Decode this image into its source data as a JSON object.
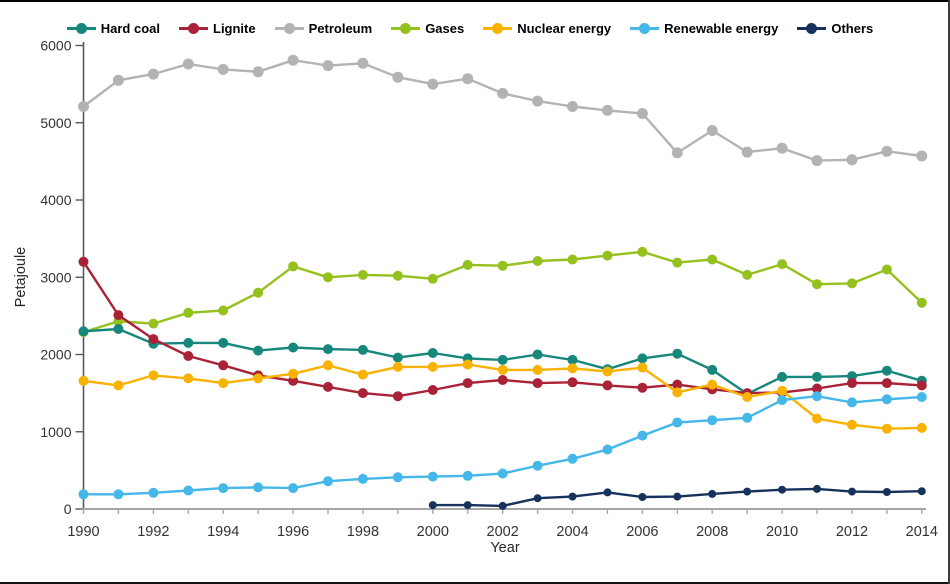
{
  "chart_data": {
    "type": "line",
    "title": "",
    "xlabel": "Year",
    "ylabel": "Petajoule",
    "x": [
      1990,
      1991,
      1992,
      1993,
      1994,
      1995,
      1996,
      1997,
      1998,
      1999,
      2000,
      2001,
      2002,
      2003,
      2004,
      2005,
      2006,
      2007,
      2008,
      2009,
      2010,
      2011,
      2012,
      2013,
      2014
    ],
    "x_tick_labels": [
      "1990",
      "1992",
      "1994",
      "1996",
      "1998",
      "2000",
      "2002",
      "2004",
      "2006",
      "2008",
      "2010",
      "2012",
      "2014"
    ],
    "y_ticks": [
      0,
      1000,
      2000,
      3000,
      4000,
      5000,
      6000
    ],
    "y_tick_labels": [
      "0",
      "1000",
      "2000",
      "3000",
      "4000",
      "5000",
      "6000"
    ],
    "ylim": [
      0,
      6000
    ],
    "grid": false,
    "legend_position": "top",
    "axis_color_y": "#595959",
    "axis_color_x": "#a6a6a6",
    "tick_label_color": "#333333",
    "axis_title_color": "#262626",
    "series": [
      {
        "name": "Hard coal",
        "color": "#17877B",
        "marker_r": 5,
        "values": [
          2300,
          2330,
          2140,
          2150,
          2150,
          2050,
          2090,
          2070,
          2060,
          1960,
          2020,
          1950,
          1930,
          2000,
          1930,
          1810,
          1950,
          2010,
          1800,
          1490,
          1710,
          1710,
          1720,
          1790,
          1660
        ]
      },
      {
        "name": "Lignite",
        "color": "#A92237",
        "marker_r": 5,
        "values": [
          3200,
          2510,
          2200,
          1980,
          1860,
          1730,
          1660,
          1580,
          1500,
          1460,
          1540,
          1630,
          1670,
          1630,
          1640,
          1600,
          1570,
          1610,
          1550,
          1500,
          1510,
          1560,
          1630,
          1630,
          1600
        ]
      },
      {
        "name": "Petroleum",
        "color": "#B3B3B3",
        "marker_r": 5.5,
        "values": [
          5210,
          5550,
          5630,
          5760,
          5690,
          5660,
          5810,
          5740,
          5770,
          5590,
          5500,
          5570,
          5380,
          5280,
          5210,
          5160,
          5120,
          4610,
          4900,
          4620,
          4670,
          4510,
          4520,
          4630,
          4570
        ]
      },
      {
        "name": "Gases",
        "color": "#95C11F",
        "marker_r": 5,
        "values": [
          2290,
          2430,
          2400,
          2540,
          2570,
          2800,
          3140,
          3000,
          3030,
          3020,
          2980,
          3160,
          3150,
          3210,
          3230,
          3280,
          3330,
          3190,
          3230,
          3030,
          3170,
          2910,
          2920,
          3100,
          2670
        ]
      },
      {
        "name": "Nuclear energy",
        "color": "#F9B200",
        "marker_r": 5,
        "values": [
          1660,
          1600,
          1730,
          1690,
          1630,
          1690,
          1750,
          1860,
          1740,
          1840,
          1840,
          1870,
          1800,
          1800,
          1820,
          1780,
          1830,
          1510,
          1610,
          1450,
          1530,
          1170,
          1090,
          1040,
          1050
        ]
      },
      {
        "name": "Renewable energy",
        "color": "#45B7E8",
        "marker_r": 5,
        "values": [
          190,
          190,
          210,
          240,
          270,
          280,
          270,
          360,
          390,
          410,
          420,
          430,
          460,
          560,
          650,
          770,
          950,
          1120,
          1150,
          1180,
          1410,
          1460,
          1380,
          1420,
          1450
        ]
      },
      {
        "name": "Others",
        "color": "#16325C",
        "marker_r": 4,
        "values": [
          null,
          null,
          null,
          null,
          null,
          null,
          null,
          null,
          null,
          null,
          50,
          50,
          40,
          140,
          160,
          215,
          155,
          160,
          195,
          225,
          250,
          260,
          225,
          220,
          230
        ]
      }
    ]
  }
}
